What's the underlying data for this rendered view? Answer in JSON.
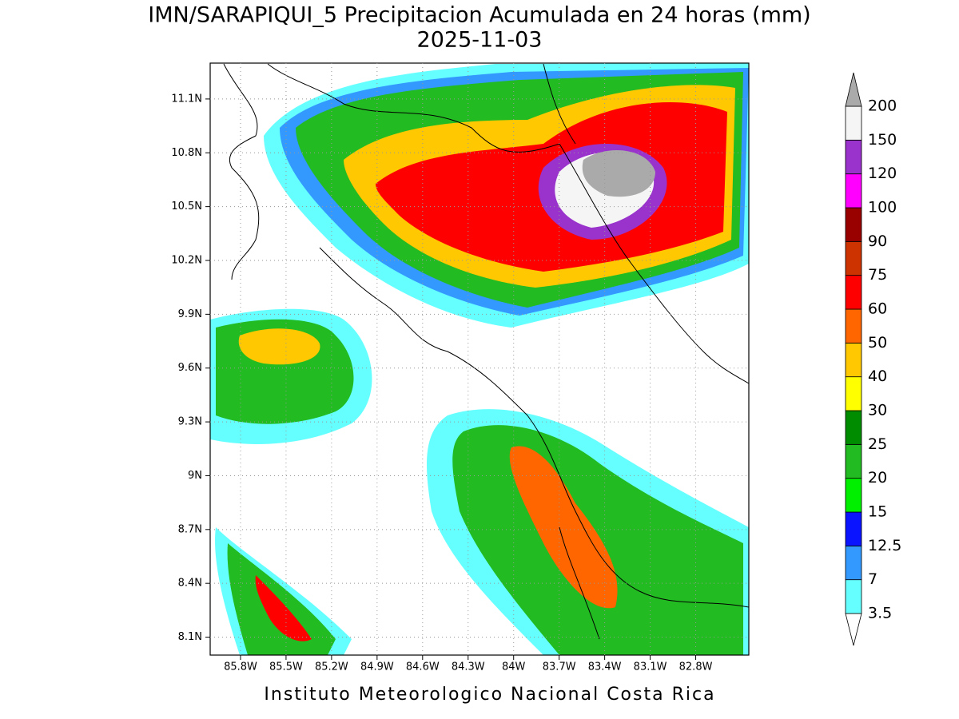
{
  "chart_data": {
    "type": "map",
    "title": "IMN/SARAPIQUI_5 Precipitacion Acumulada en 24 horas (mm)",
    "subtitle": "2025-11-03",
    "footer": "Instituto Meteorologico Nacional Costa Rica",
    "xlim": [
      -86.0,
      -82.45
    ],
    "ylim": [
      8.0,
      11.3
    ],
    "xticks": [
      {
        "value": -85.8,
        "label": "85.8W"
      },
      {
        "value": -85.5,
        "label": "85.5W"
      },
      {
        "value": -85.2,
        "label": "85.2W"
      },
      {
        "value": -84.9,
        "label": "84.9W"
      },
      {
        "value": -84.6,
        "label": "84.6W"
      },
      {
        "value": -84.3,
        "label": "84.3W"
      },
      {
        "value": -84.0,
        "label": "84W"
      },
      {
        "value": -83.7,
        "label": "83.7W"
      },
      {
        "value": -83.4,
        "label": "83.4W"
      },
      {
        "value": -83.1,
        "label": "83.1W"
      },
      {
        "value": -82.8,
        "label": "82.8W"
      }
    ],
    "yticks": [
      {
        "value": 8.1,
        "label": "8.1N"
      },
      {
        "value": 8.4,
        "label": "8.4N"
      },
      {
        "value": 8.7,
        "label": "8.7N"
      },
      {
        "value": 9.0,
        "label": "9N"
      },
      {
        "value": 9.3,
        "label": "9.3N"
      },
      {
        "value": 9.6,
        "label": "9.6N"
      },
      {
        "value": 9.9,
        "label": "9.9N"
      },
      {
        "value": 10.2,
        "label": "10.2N"
      },
      {
        "value": 10.5,
        "label": "10.5N"
      },
      {
        "value": 10.8,
        "label": "10.8N"
      },
      {
        "value": 11.1,
        "label": "11.1N"
      }
    ],
    "grid": true,
    "levels": [
      3.5,
      7,
      12.5,
      15,
      20,
      25,
      30,
      40,
      50,
      60,
      75,
      90,
      100,
      120,
      150,
      200
    ],
    "colors": [
      "#ffffff",
      "#66ffff",
      "#3399ff",
      "#0a14ff",
      "#00f000",
      "#22bb22",
      "#008c00",
      "#ffff00",
      "#ffc800",
      "#ff6600",
      "#ff0000",
      "#cc3300",
      "#990000",
      "#ff00ff",
      "#9933cc",
      "#f5f5f5",
      "#aaaaaa"
    ]
  }
}
